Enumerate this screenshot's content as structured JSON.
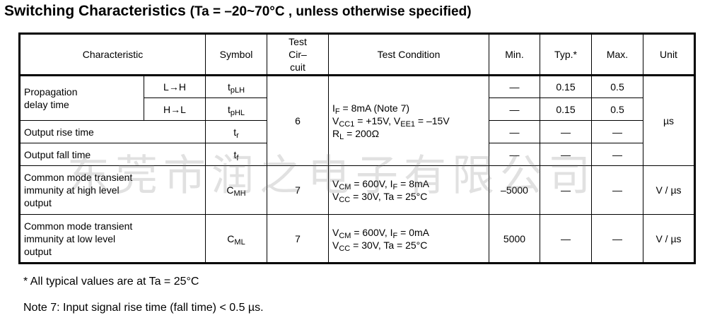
{
  "title": {
    "main": "Switching Characteristics",
    "condition": "(Ta = –20~70°C , unless otherwise specified)"
  },
  "headers": {
    "characteristic": "Characteristic",
    "symbol": "Symbol",
    "test_circuit_l1": "Test",
    "test_circuit_l2": "Cir–",
    "test_circuit_l3": "cuit",
    "test_condition": "Test Condition",
    "min": "Min.",
    "typ": "Typ.*",
    "max": "Max.",
    "unit": "Unit"
  },
  "rows": {
    "propagation": {
      "name_l1": "Propagation",
      "name_l2": "delay time",
      "lh_dir": "L→H",
      "lh_sym_main": "t",
      "lh_sym_sub": "pLH",
      "lh_min": "—",
      "lh_typ": "0.15",
      "lh_max": "0.5",
      "hl_dir": "H→L",
      "hl_sym_main": "t",
      "hl_sym_sub": "pHL",
      "hl_min": "—",
      "hl_typ": "0.15",
      "hl_max": "0.5"
    },
    "group1": {
      "test_circuit": "6",
      "cond_l1_main": "I",
      "cond_l1_sub": "F",
      "cond_l1_rest": " = 8mA (Note 7)",
      "cond_l2_a": "V",
      "cond_l2_sub1": "CC1",
      "cond_l2_b": " = +15V, V",
      "cond_l2_sub2": "EE1",
      "cond_l2_c": " = –15V",
      "cond_l3_main": "R",
      "cond_l3_sub": "L",
      "cond_l3_rest": " = 200Ω",
      "unit": "µs"
    },
    "rise": {
      "name": "Output rise time",
      "sym_main": "t",
      "sym_sub": "r",
      "min": "—",
      "typ": "—",
      "max": "—"
    },
    "fall": {
      "name": "Output fall time",
      "sym_main": "t",
      "sym_sub": "f",
      "min": "—",
      "typ": "—",
      "max": "—"
    },
    "cmh": {
      "name_l1": "Common mode transient",
      "name_l2": "immunity at high level",
      "name_l3": "output",
      "sym_main": "C",
      "sym_sub": "MH",
      "test_circuit": "7",
      "cond_l1_a": "V",
      "cond_l1_sub1": "CM",
      "cond_l1_b": " = 600V, I",
      "cond_l1_sub2": "F",
      "cond_l1_c": " = 8mA",
      "cond_l2_a": "V",
      "cond_l2_sub": "CC",
      "cond_l2_b": " = 30V, Ta = 25°C",
      "min": "–5000",
      "typ": "—",
      "max": "—",
      "unit": "V / µs"
    },
    "cml": {
      "name_l1": "Common mode transient",
      "name_l2": "immunity at low level",
      "name_l3": "output",
      "sym_main": "C",
      "sym_sub": "ML",
      "test_circuit": "7",
      "cond_l1_a": "V",
      "cond_l1_sub1": "CM",
      "cond_l1_b": " = 600V, I",
      "cond_l1_sub2": "F",
      "cond_l1_c": " = 0mA",
      "cond_l2_a": "V",
      "cond_l2_sub": "CC",
      "cond_l2_b": " = 30V, Ta = 25°C",
      "min": "5000",
      "typ": "—",
      "max": "—",
      "unit": "V / µs"
    }
  },
  "watermark": "东莞市润之电子有限公司",
  "notes": {
    "typical": "* All typical values are at Ta = 25°C",
    "note7": "Note 7: Input signal rise time (fall time) < 0.5 µs."
  }
}
